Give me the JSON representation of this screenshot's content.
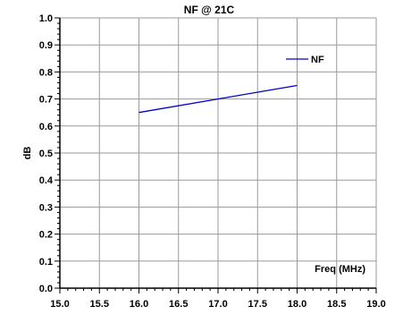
{
  "chart_data": {
    "type": "line",
    "title": "NF @ 21C",
    "xlabel": "Freq (MHz)",
    "ylabel": "dB",
    "xlim": [
      15.0,
      19.0
    ],
    "ylim": [
      0.0,
      1.0
    ],
    "x_ticks": [
      "15.0",
      "15.5",
      "16.0",
      "16.5",
      "17.0",
      "17.5",
      "18.0",
      "18.5",
      "19.0"
    ],
    "y_ticks": [
      "0.0",
      "0.1",
      "0.2",
      "0.3",
      "0.4",
      "0.5",
      "0.6",
      "0.7",
      "0.8",
      "0.9",
      "1.0"
    ],
    "grid": true,
    "legend_position": "top-right",
    "series": [
      {
        "name": "NF",
        "color": "#0000cc",
        "x": [
          16.0,
          17.0,
          18.0
        ],
        "y": [
          0.65,
          0.7,
          0.75
        ]
      }
    ]
  }
}
